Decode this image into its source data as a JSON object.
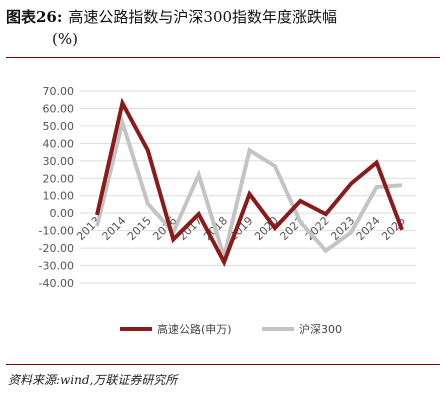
{
  "header": {
    "label": "图表26:",
    "title_line1": "高速公路指数与沪深300指数年度涨跌幅",
    "title_line2": "(%)"
  },
  "source": "资料来源:wind,万联证券研究所",
  "colors": {
    "series1": "#8b1a1a",
    "series2": "#c4c4c4",
    "grid": "#dddddd",
    "rule": "#7a0000"
  },
  "chart_data": {
    "type": "line",
    "title": "高速公路指数与沪深300指数年度涨跌幅(%)",
    "xlabel": "",
    "ylabel": "",
    "ylim": [
      -40,
      70
    ],
    "yticks": [
      "70.00",
      "60.00",
      "50.00",
      "40.00",
      "30.00",
      "20.00",
      "10.00",
      "0.00",
      "-10.00",
      "-20.00",
      "-30.00",
      "-40.00"
    ],
    "ytick_values": [
      70,
      60,
      50,
      40,
      30,
      20,
      10,
      0,
      -10,
      -20,
      -30,
      -40
    ],
    "categories": [
      "2013",
      "2014",
      "2015",
      "2016",
      "2017",
      "2018",
      "2019",
      "2020",
      "2021",
      "2022",
      "2023",
      "2024",
      "2025"
    ],
    "grid": true,
    "legend_position": "bottom",
    "series": [
      {
        "name": "高速公路(申万)",
        "values": [
          -1,
          63,
          36,
          -15,
          -0.5,
          -28,
          11,
          -8.5,
          7,
          -0.5,
          17,
          29,
          -9.5
        ]
      },
      {
        "name": "沪深300",
        "values": [
          -7.5,
          52,
          5.5,
          -11,
          22,
          -25,
          36,
          27,
          -5,
          -21.5,
          -11,
          15,
          16
        ]
      }
    ]
  }
}
